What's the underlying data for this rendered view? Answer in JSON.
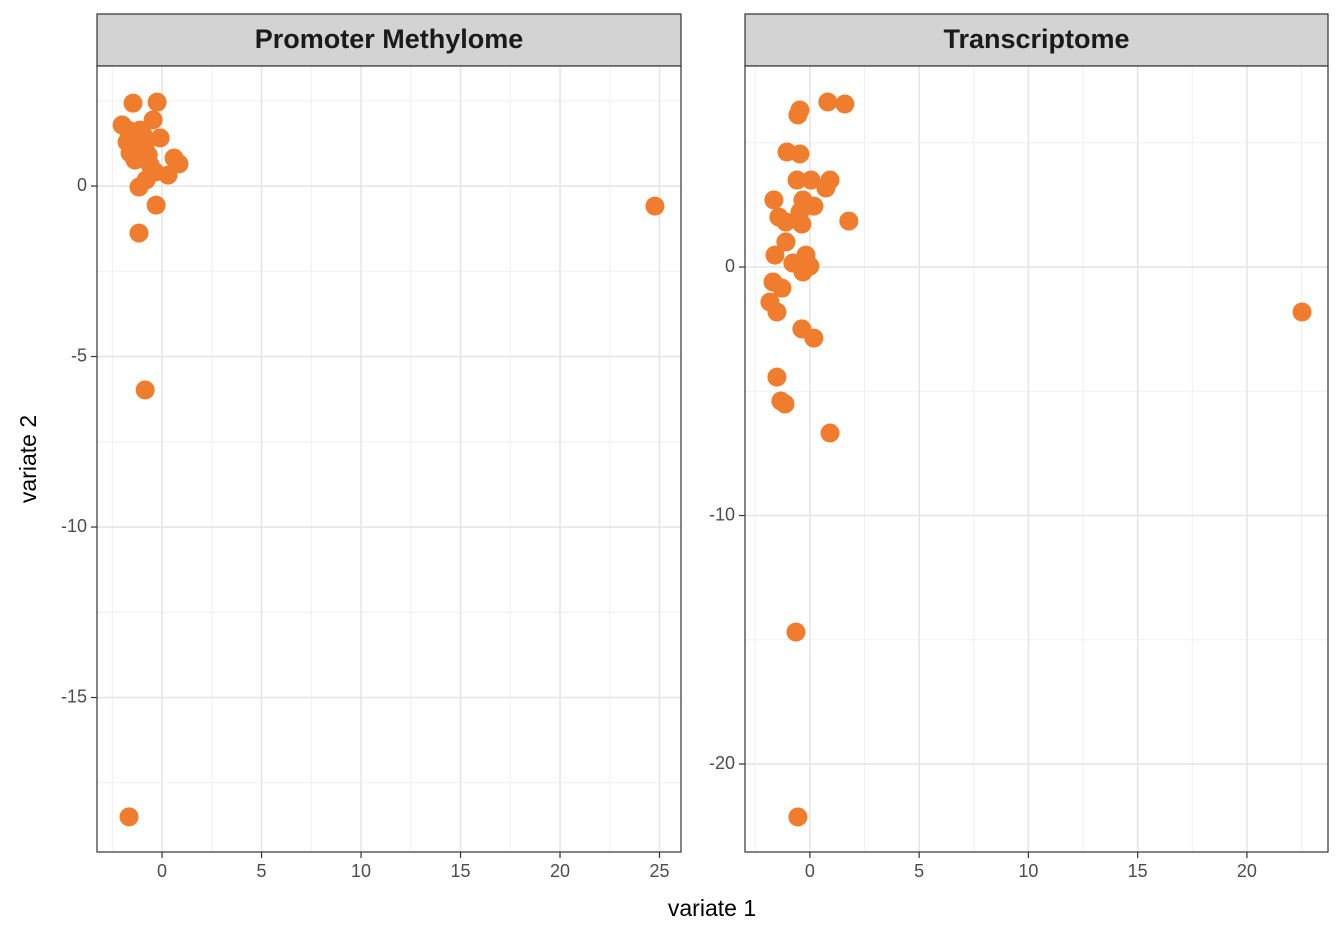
{
  "xlabel": "variate 1",
  "ylabel": "variate 2",
  "chart_data": [
    {
      "type": "scatter",
      "title": "Promoter Methylome",
      "color": "#ef7d2d",
      "grid": true,
      "xlim": [
        -3.27,
        26.08
      ],
      "ylim": [
        -19.53,
        3.52
      ],
      "xticks": [
        0,
        5,
        10,
        15,
        20,
        25
      ],
      "yticks": [
        -15,
        -10,
        -5,
        0
      ],
      "x": [
        -1.46,
        -0.25,
        -2.01,
        -1.71,
        -1.11,
        -0.45,
        -1.76,
        -0.1,
        -0.85,
        -1.61,
        -1.36,
        -0.7,
        0.6,
        0.85,
        -0.35,
        0.3,
        -0.8,
        -1.16,
        -0.3,
        -1.16,
        24.77,
        -0.85,
        -1.66,
        -1.26,
        -0.6,
        -0.95
      ],
      "y": [
        2.43,
        2.46,
        1.79,
        1.64,
        1.64,
        1.94,
        1.29,
        1.41,
        1.2,
        0.97,
        0.76,
        0.91,
        0.82,
        0.65,
        0.41,
        0.32,
        0.18,
        -0.03,
        -0.56,
        -1.38,
        -0.59,
        -5.98,
        -18.5,
        1.2,
        0.62,
        1.5
      ]
    },
    {
      "type": "scatter",
      "title": "Transcriptome",
      "color": "#ef7d2d",
      "grid": true,
      "xlim": [
        -2.97,
        23.71
      ],
      "ylim": [
        -23.54,
        8.09
      ],
      "xticks": [
        0,
        5,
        10,
        15,
        20
      ],
      "yticks": [
        -20,
        -10,
        0
      ],
      "x": [
        0.82,
        1.6,
        -0.46,
        -0.55,
        -1.05,
        -0.46,
        -0.59,
        0.05,
        0.92,
        0.73,
        -1.65,
        -0.32,
        0.18,
        -0.46,
        -1.42,
        1.78,
        -1.1,
        -0.37,
        -1.1,
        -1.6,
        -0.18,
        -0.78,
        0.0,
        -0.32,
        -1.69,
        -1.28,
        -1.83,
        -1.51,
        -0.37,
        0.18,
        -1.51,
        -1.33,
        -1.14,
        0.92,
        22.52,
        -0.64,
        -0.55
      ],
      "y": [
        6.64,
        6.56,
        6.32,
        6.12,
        4.63,
        4.55,
        3.5,
        3.5,
        3.5,
        3.18,
        2.7,
        2.7,
        2.45,
        2.21,
        2.01,
        1.85,
        1.81,
        1.73,
        1.01,
        0.48,
        0.48,
        0.16,
        0.04,
        -0.2,
        -0.6,
        -0.85,
        -1.41,
        -1.81,
        -2.49,
        -2.86,
        -4.43,
        -5.39,
        -5.51,
        -6.68,
        -1.81,
        -14.69,
        -22.13
      ]
    }
  ]
}
